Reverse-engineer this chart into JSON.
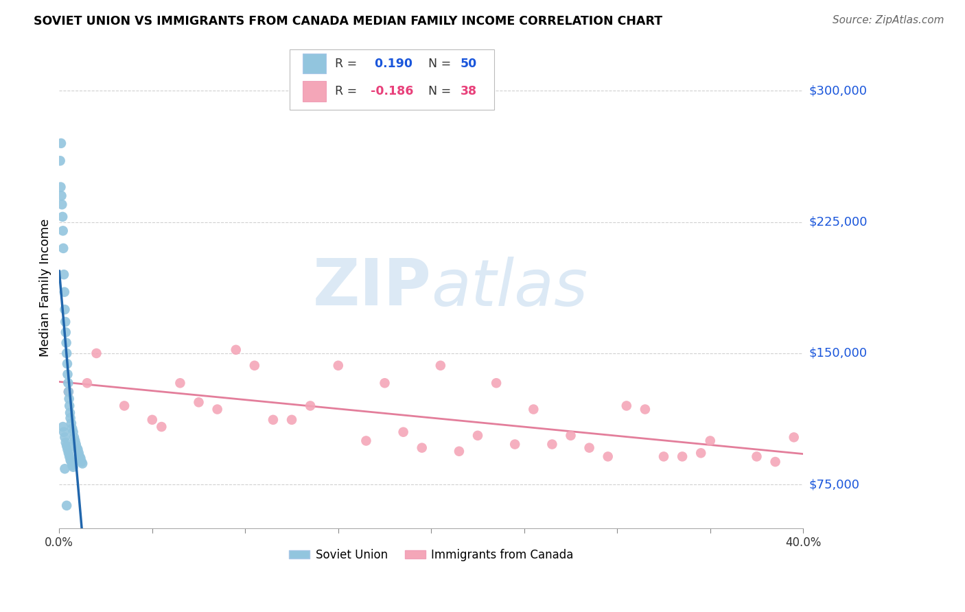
{
  "title": "SOVIET UNION VS IMMIGRANTS FROM CANADA MEDIAN FAMILY INCOME CORRELATION CHART",
  "source": "Source: ZipAtlas.com",
  "ylabel": "Median Family Income",
  "xmin": 0.0,
  "xmax": 40.0,
  "ymin": 50000,
  "ymax": 325000,
  "yticks": [
    75000,
    150000,
    225000,
    300000
  ],
  "ytick_labels": [
    "$75,000",
    "$150,000",
    "$225,000",
    "$300,000"
  ],
  "r_blue": 0.19,
  "n_blue": 50,
  "r_pink": -0.186,
  "n_pink": 38,
  "legend_label_blue": "Soviet Union",
  "legend_label_pink": "Immigrants from Canada",
  "blue_color": "#92c5de",
  "pink_color": "#f4a6b8",
  "blue_line_color": "#2166ac",
  "pink_line_color": "#e07090",
  "background_color": "#ffffff",
  "watermark_color": "#dce9f5",
  "grid_color": "#d0d0d0",
  "blue_scatter_x": [
    0.05,
    0.08,
    0.1,
    0.12,
    0.15,
    0.18,
    0.2,
    0.22,
    0.25,
    0.28,
    0.3,
    0.33,
    0.35,
    0.38,
    0.4,
    0.43,
    0.45,
    0.48,
    0.5,
    0.53,
    0.55,
    0.58,
    0.6,
    0.65,
    0.7,
    0.75,
    0.8,
    0.85,
    0.9,
    0.95,
    1.0,
    1.05,
    1.1,
    1.15,
    1.2,
    1.25,
    0.2,
    0.25,
    0.3,
    0.35,
    0.4,
    0.45,
    0.5,
    0.55,
    0.6,
    0.65,
    0.7,
    0.75,
    0.3,
    0.4
  ],
  "blue_scatter_y": [
    260000,
    245000,
    270000,
    240000,
    235000,
    228000,
    220000,
    210000,
    195000,
    185000,
    175000,
    168000,
    162000,
    156000,
    150000,
    144000,
    138000,
    133000,
    128000,
    124000,
    120000,
    116000,
    113000,
    110000,
    107000,
    105000,
    102000,
    100000,
    98000,
    96000,
    95000,
    93000,
    91000,
    90000,
    88000,
    87000,
    108000,
    105000,
    102000,
    99000,
    97000,
    95000,
    93000,
    91000,
    89000,
    88000,
    86000,
    85000,
    84000,
    63000
  ],
  "pink_scatter_x": [
    0.5,
    1.5,
    2.0,
    3.5,
    5.0,
    5.5,
    6.5,
    7.5,
    8.5,
    9.5,
    10.5,
    11.5,
    12.5,
    13.5,
    15.0,
    16.5,
    17.5,
    18.5,
    19.5,
    20.5,
    21.5,
    22.5,
    23.5,
    24.5,
    25.5,
    26.5,
    27.5,
    28.5,
    29.5,
    30.5,
    31.5,
    32.5,
    33.5,
    34.5,
    35.0,
    37.5,
    38.5,
    39.5
  ],
  "pink_scatter_y": [
    128000,
    133000,
    150000,
    120000,
    112000,
    108000,
    133000,
    122000,
    118000,
    152000,
    143000,
    112000,
    112000,
    120000,
    143000,
    100000,
    133000,
    105000,
    96000,
    143000,
    94000,
    103000,
    133000,
    98000,
    118000,
    98000,
    103000,
    96000,
    91000,
    120000,
    118000,
    91000,
    91000,
    93000,
    100000,
    91000,
    88000,
    102000
  ]
}
